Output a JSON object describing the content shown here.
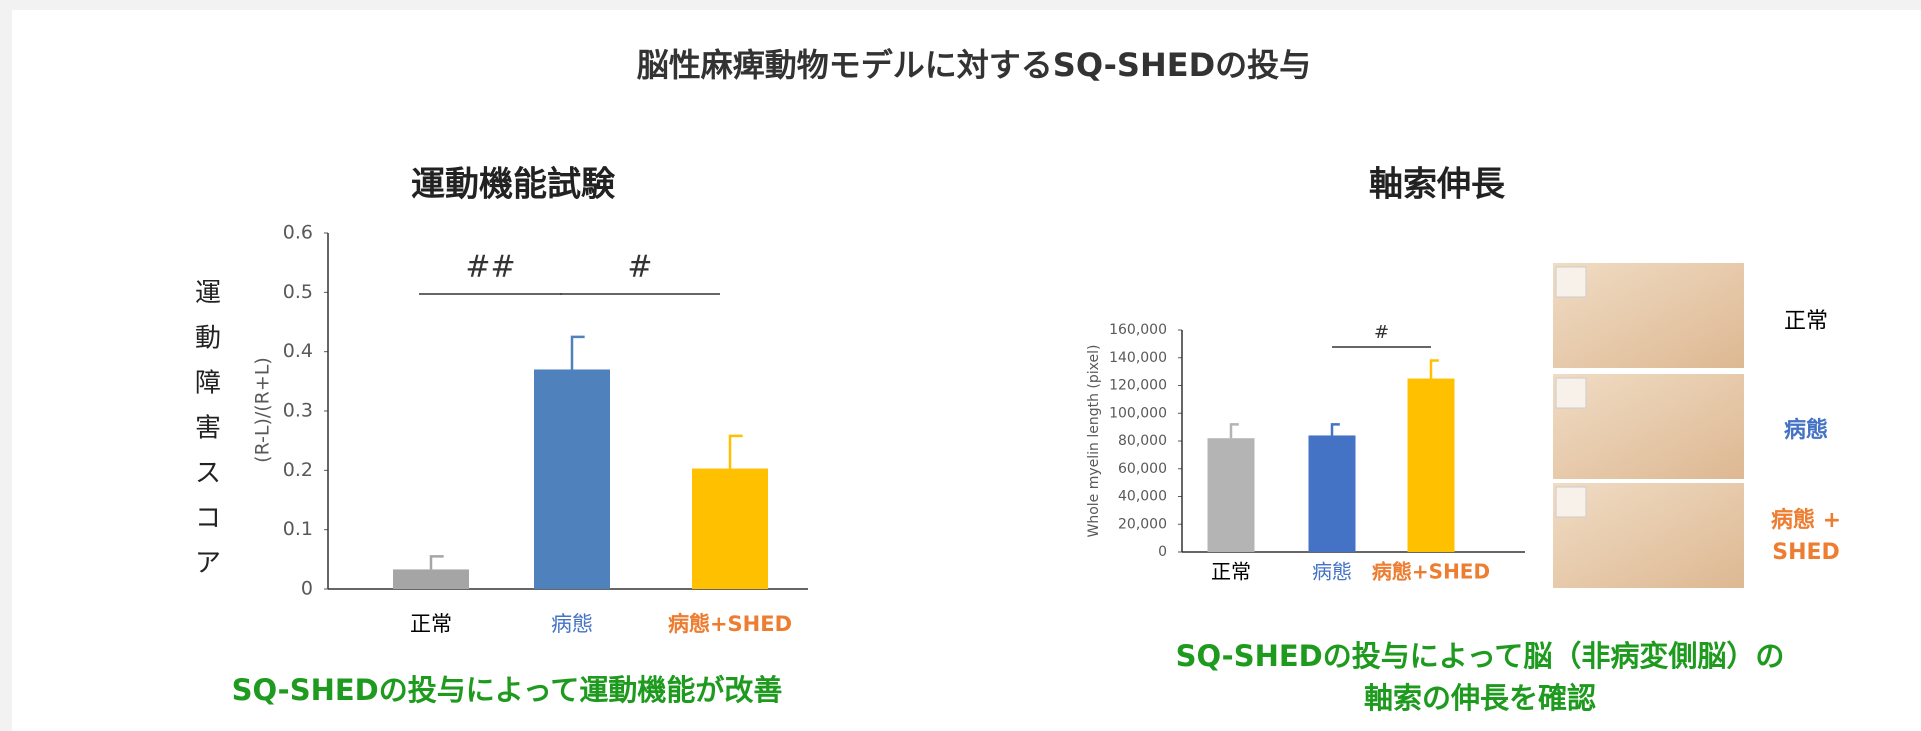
{
  "title": "脳性麻痺動物モデルに対するSQ-SHEDの投与",
  "chart_data": [
    {
      "type": "bar",
      "title": "運動機能試験",
      "side_label": "運動障害スコア",
      "y_label": "(R-L)/(R+L)",
      "categories": [
        "正常",
        "病態",
        "病態+SHED"
      ],
      "category_colors": [
        "#000000",
        "#4472c4",
        "#ed7d31"
      ],
      "values": [
        0.033,
        0.37,
        0.203
      ],
      "errors": [
        0.022,
        0.055,
        0.055
      ],
      "colors": [
        "#a5a5a5",
        "#4f81bd",
        "#ffc000"
      ],
      "ylim": [
        0,
        0.6
      ],
      "yticks": [
        0,
        0.1,
        0.2,
        0.3,
        0.4,
        0.5,
        0.6
      ],
      "annotations": [
        {
          "text": "##",
          "from": 1,
          "to": 2
        },
        {
          "text": "#",
          "from": 2,
          "to": 3
        }
      ],
      "caption": "SQ-SHEDの投与によって運動機能が改善"
    },
    {
      "type": "bar",
      "title": "軸索伸長",
      "y_label": "Whole myelin length (pixel)",
      "categories": [
        "正常",
        "病態",
        "病態+SHED"
      ],
      "category_colors": [
        "#000000",
        "#4472c4",
        "#ed7d31"
      ],
      "values": [
        82000,
        84000,
        125000
      ],
      "errors": [
        10000,
        8000,
        13000
      ],
      "colors": [
        "#b4b4b4",
        "#4472c4",
        "#ffc000"
      ],
      "ylim": [
        0,
        160000
      ],
      "yticks": [
        0,
        {
          "value": 20000,
          "label": "20,000"
        },
        {
          "value": 40000,
          "label": "40,000"
        },
        {
          "value": 60000,
          "label": "60,000"
        },
        {
          "value": 80000,
          "label": "80,000"
        },
        {
          "value": 100000,
          "label": "100,000"
        },
        {
          "value": 120000,
          "label": "120,000"
        },
        {
          "value": 140000,
          "label": "140,000"
        },
        {
          "value": 160000,
          "label": "160,000"
        }
      ],
      "annotations": [
        {
          "text": "#",
          "from": 2,
          "to": 3
        }
      ],
      "images": [
        {
          "label": [
            "正常"
          ],
          "color": "#000000"
        },
        {
          "label": [
            "病態"
          ],
          "color": "#4472c4"
        },
        {
          "label": [
            "病態 +",
            "SHED"
          ],
          "color": "#ed7d31"
        }
      ],
      "caption": [
        "SQ-SHEDの投与によって脳（非病変側脳）の",
        "軸索の伸長を確認"
      ]
    }
  ]
}
